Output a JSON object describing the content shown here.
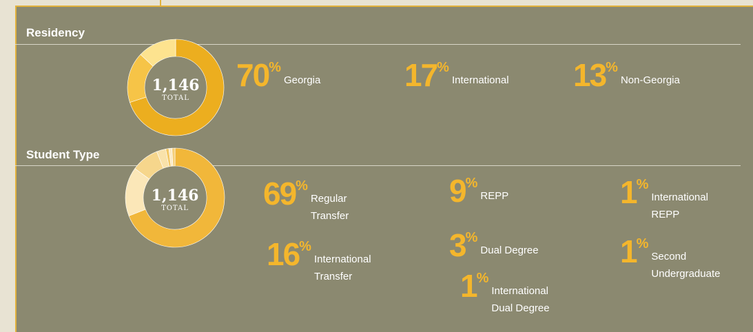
{
  "chart_data": [
    {
      "type": "donut",
      "title": "Residency",
      "total": "1,146",
      "total_caption": "TOTAL",
      "unit": "%",
      "categories": [
        "Georgia",
        "International",
        "Non-Georgia"
      ],
      "values": [
        70,
        17,
        13
      ],
      "colors": [
        "#ecae1f",
        "#f6c447",
        "#fde38f"
      ]
    },
    {
      "type": "donut",
      "title": "Student Type",
      "total": "1,146",
      "total_caption": "TOTAL",
      "unit": "%",
      "categories": [
        "Regular Transfer",
        "International Transfer",
        "REPP",
        "Dual Degree",
        "International Dual Degree",
        "International REPP",
        "Second Undergraduate"
      ],
      "values": [
        69,
        16,
        9,
        3,
        1,
        1,
        1
      ],
      "colors": [
        "#f1b73a",
        "#fbe7b8",
        "#f6d68c",
        "#f9e2aa",
        "#f3c867",
        "#fbeac4",
        "#f5cf79"
      ]
    }
  ]
}
